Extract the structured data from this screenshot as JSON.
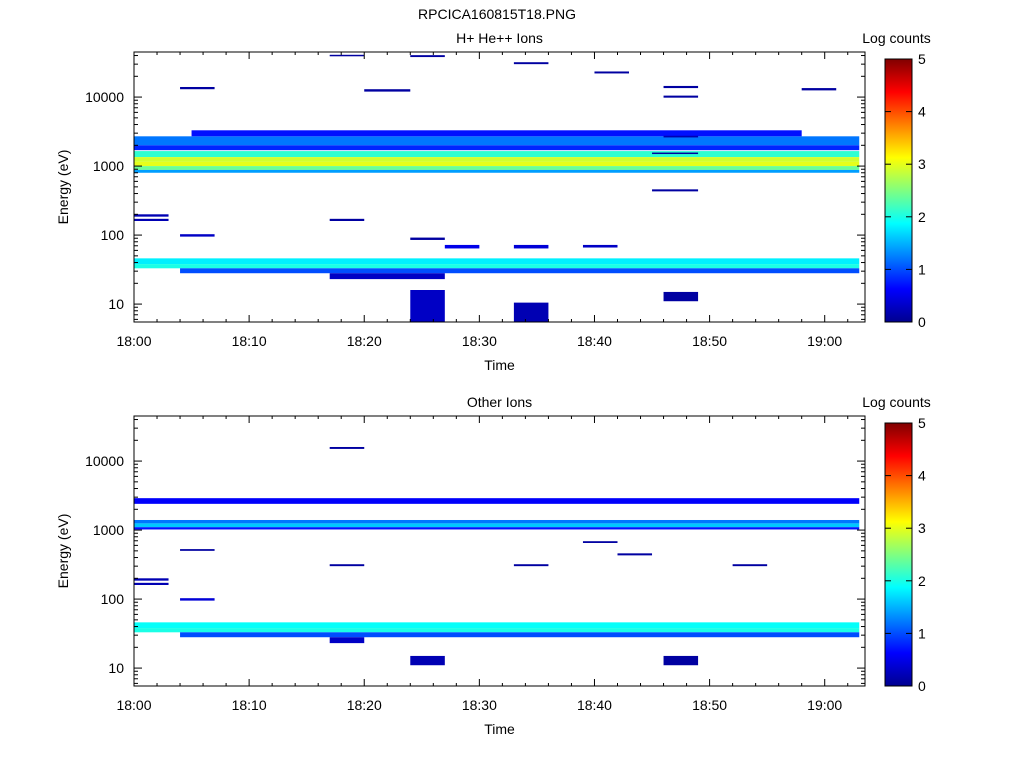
{
  "figure_title": "RPCICA160815T18.PNG",
  "colors": {
    "colormap": [
      "#00008f",
      "#0000ff",
      "#0080ff",
      "#00ffff",
      "#80ff80",
      "#ffff00",
      "#ff8000",
      "#ff0000",
      "#800000"
    ]
  },
  "chart_data": [
    {
      "type": "heatmap",
      "title": "H+ He++ Ions",
      "xlabel": "Time",
      "ylabel": "Energy (eV)",
      "x_ticks": [
        "18:00",
        "18:10",
        "18:20",
        "18:30",
        "18:40",
        "18:50",
        "19:00"
      ],
      "x_tick_minutes": [
        0,
        10,
        20,
        30,
        40,
        50,
        60
      ],
      "xlim_minutes": [
        0,
        63.5
      ],
      "y_scale": "log",
      "ylim": [
        5.5,
        45000
      ],
      "y_ticks": [
        "10",
        "100",
        "1000",
        "10000"
      ],
      "y_tick_values": [
        10,
        100,
        1000,
        10000
      ],
      "colorbar": {
        "label": "Log counts",
        "min": 0,
        "max": 5,
        "ticks": [
          "0",
          "1",
          "2",
          "3",
          "4",
          "5"
        ]
      },
      "time_bins_minutes": [
        0,
        4,
        5,
        4,
        3,
        4,
        3,
        5,
        3,
        3,
        4,
        3,
        4,
        3,
        4,
        3,
        3,
        3,
        3,
        3,
        4,
        3
      ],
      "cells": [
        {
          "t": [
            0,
            63
          ],
          "e": [
            1350,
            1650
          ],
          "v": 2.1
        },
        {
          "t": [
            0,
            63
          ],
          "e": [
            1150,
            1350
          ],
          "v": 2.9
        },
        {
          "t": [
            0,
            63
          ],
          "e": [
            1000,
            1150
          ],
          "v": 3.0
        },
        {
          "t": [
            0,
            63
          ],
          "e": [
            880,
            1000
          ],
          "v": 2.4
        },
        {
          "t": [
            0,
            63
          ],
          "e": [
            800,
            880
          ],
          "v": 1.4
        },
        {
          "t": [
            0,
            63
          ],
          "e": [
            2000,
            2700
          ],
          "v": 1.2
        },
        {
          "t": [
            0,
            63
          ],
          "e": [
            1700,
            2000
          ],
          "v": 0.8
        },
        {
          "t": [
            5,
            58
          ],
          "e": [
            2700,
            3300
          ],
          "v": 0.7
        },
        {
          "t": [
            0,
            63
          ],
          "e": [
            38,
            46
          ],
          "v": 1.8
        },
        {
          "t": [
            0,
            63
          ],
          "e": [
            33,
            38
          ],
          "v": 2.0
        },
        {
          "t": [
            4,
            63
          ],
          "e": [
            28,
            33
          ],
          "v": 1.0
        },
        {
          "t": [
            17,
            27
          ],
          "e": [
            23,
            28
          ],
          "v": 0.3
        },
        {
          "t": [
            24,
            27
          ],
          "e": [
            5.5,
            16
          ],
          "v": 0.3
        },
        {
          "t": [
            33,
            36
          ],
          "e": [
            5.5,
            10.5
          ],
          "v": 0.2
        },
        {
          "t": [
            46,
            49
          ],
          "e": [
            11,
            15
          ],
          "v": 0.1
        },
        {
          "t": [
            0,
            3
          ],
          "e": [
            185,
            200
          ],
          "v": 0.2
        },
        {
          "t": [
            0,
            3
          ],
          "e": [
            160,
            172
          ],
          "v": 0.2
        },
        {
          "t": [
            4,
            7
          ],
          "e": [
            95,
            103
          ],
          "v": 0.3
        },
        {
          "t": [
            17,
            20
          ],
          "e": [
            160,
            172
          ],
          "v": 0.1
        },
        {
          "t": [
            24,
            27
          ],
          "e": [
            85,
            92
          ],
          "v": 0.1
        },
        {
          "t": [
            27,
            30
          ],
          "e": [
            64,
            72
          ],
          "v": 0.5
        },
        {
          "t": [
            33,
            36
          ],
          "e": [
            64,
            72
          ],
          "v": 0.4
        },
        {
          "t": [
            39,
            42
          ],
          "e": [
            66,
            72
          ],
          "v": 0.3
        },
        {
          "t": [
            45,
            49
          ],
          "e": [
            430,
            460
          ],
          "v": 0.1
        },
        {
          "t": [
            45,
            49
          ],
          "e": [
            1500,
            1570
          ],
          "v": 0.1
        },
        {
          "t": [
            46,
            49
          ],
          "e": [
            2600,
            2750
          ],
          "v": 0.2
        },
        {
          "t": [
            20,
            24
          ],
          "e": [
            12000,
            13000
          ],
          "v": 0.1
        },
        {
          "t": [
            4,
            7
          ],
          "e": [
            13000,
            14000
          ],
          "v": 0.1
        },
        {
          "t": [
            17,
            20
          ],
          "e": [
            39000,
            41000
          ],
          "v": 0.1
        },
        {
          "t": [
            24,
            27
          ],
          "e": [
            38000,
            40500
          ],
          "v": 0.1
        },
        {
          "t": [
            33,
            36
          ],
          "e": [
            30000,
            32000
          ],
          "v": 0.1
        },
        {
          "t": [
            40,
            43
          ],
          "e": [
            22000,
            23500
          ],
          "v": 0.1
        },
        {
          "t": [
            46,
            49
          ],
          "e": [
            13500,
            14500
          ],
          "v": 0.1
        },
        {
          "t": [
            46,
            49
          ],
          "e": [
            9800,
            10500
          ],
          "v": 0.1
        },
        {
          "t": [
            58,
            61
          ],
          "e": [
            12500,
            13500
          ],
          "v": 0.1
        }
      ]
    },
    {
      "type": "heatmap",
      "title": "Other Ions",
      "xlabel": "Time",
      "ylabel": "Energy (eV)",
      "x_ticks": [
        "18:00",
        "18:10",
        "18:20",
        "18:30",
        "18:40",
        "18:50",
        "19:00"
      ],
      "x_tick_minutes": [
        0,
        10,
        20,
        30,
        40,
        50,
        60
      ],
      "xlim_minutes": [
        0,
        63.5
      ],
      "y_scale": "log",
      "ylim": [
        5.5,
        45000
      ],
      "y_ticks": [
        "10",
        "100",
        "1000",
        "10000"
      ],
      "y_tick_values": [
        10,
        100,
        1000,
        10000
      ],
      "colorbar": {
        "label": "Log counts",
        "min": 0,
        "max": 5,
        "ticks": [
          "0",
          "1",
          "2",
          "3",
          "4",
          "5"
        ]
      },
      "cells": [
        {
          "t": [
            0,
            63
          ],
          "e": [
            2400,
            2900
          ],
          "v": 0.6
        },
        {
          "t": [
            0,
            63
          ],
          "e": [
            1250,
            1400
          ],
          "v": 1.2
        },
        {
          "t": [
            0,
            63
          ],
          "e": [
            1100,
            1250
          ],
          "v": 1.6
        },
        {
          "t": [
            0,
            63
          ],
          "e": [
            1020,
            1100
          ],
          "v": 0.7
        },
        {
          "t": [
            0,
            63
          ],
          "e": [
            38,
            46
          ],
          "v": 1.9
        },
        {
          "t": [
            0,
            63
          ],
          "e": [
            33,
            38
          ],
          "v": 2.0
        },
        {
          "t": [
            4,
            63
          ],
          "e": [
            28,
            33
          ],
          "v": 1.0
        },
        {
          "t": [
            17,
            20
          ],
          "e": [
            23,
            28
          ],
          "v": 0.3
        },
        {
          "t": [
            24,
            27
          ],
          "e": [
            11,
            15
          ],
          "v": 0.2
        },
        {
          "t": [
            46,
            49
          ],
          "e": [
            11,
            15
          ],
          "v": 0.1
        },
        {
          "t": [
            0,
            3
          ],
          "e": [
            185,
            200
          ],
          "v": 0.2
        },
        {
          "t": [
            0,
            3
          ],
          "e": [
            160,
            172
          ],
          "v": 0.2
        },
        {
          "t": [
            4,
            7
          ],
          "e": [
            95,
            103
          ],
          "v": 0.4
        },
        {
          "t": [
            4,
            7
          ],
          "e": [
            500,
            530
          ],
          "v": 0.1
        },
        {
          "t": [
            17,
            20
          ],
          "e": [
            15000,
            16000
          ],
          "v": 0.1
        },
        {
          "t": [
            17,
            20
          ],
          "e": [
            300,
            320
          ],
          "v": 0.1
        },
        {
          "t": [
            33,
            36
          ],
          "e": [
            300,
            320
          ],
          "v": 0.1
        },
        {
          "t": [
            39,
            42
          ],
          "e": [
            650,
            690
          ],
          "v": 0.1
        },
        {
          "t": [
            42,
            45
          ],
          "e": [
            430,
            460
          ],
          "v": 0.1
        },
        {
          "t": [
            52,
            55
          ],
          "e": [
            300,
            320
          ],
          "v": 0.1
        }
      ]
    }
  ]
}
